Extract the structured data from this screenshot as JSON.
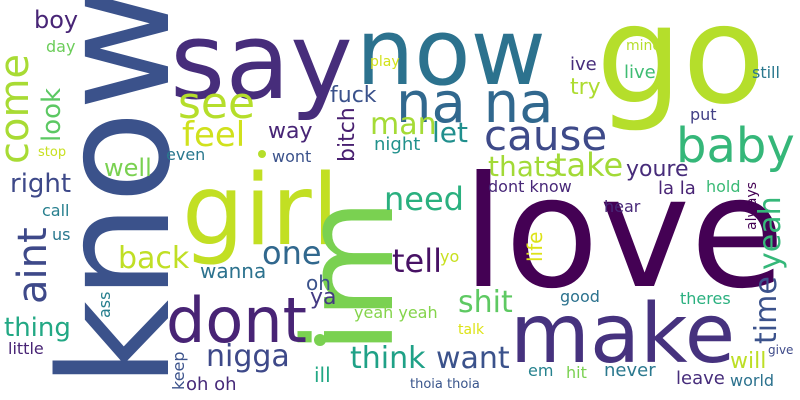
{
  "words": [
    {
      "id": "know",
      "text": "know",
      "color": "#3b528b"
    },
    {
      "id": "say",
      "text": "say",
      "color": "#472d7b"
    },
    {
      "id": "now",
      "text": "now",
      "color": "#2c728e"
    },
    {
      "id": "go",
      "text": "go",
      "color": "#b5de2b"
    },
    {
      "id": "love",
      "text": "love",
      "color": "#440154"
    },
    {
      "id": "girl",
      "text": "girl",
      "color": "#c2df23"
    },
    {
      "id": "im",
      "text": "im",
      "color": "#7ad151"
    },
    {
      "id": "make",
      "text": "make",
      "color": "#46327e"
    },
    {
      "id": "dont",
      "text": "dont",
      "color": "#482475"
    },
    {
      "id": "na-na",
      "text": "na na",
      "color": "#31688e"
    },
    {
      "id": "see",
      "text": "see",
      "color": "#b5de2b"
    },
    {
      "id": "baby",
      "text": "baby",
      "color": "#35b779"
    },
    {
      "id": "cause",
      "text": "cause",
      "color": "#3e4a89"
    },
    {
      "id": "aint",
      "text": "aint",
      "color": "#3e4989"
    },
    {
      "id": "come",
      "text": "come",
      "color": "#a8db34"
    },
    {
      "id": "feel",
      "text": "feel",
      "color": "#d0e11c"
    },
    {
      "id": "nigga",
      "text": "nigga",
      "color": "#3e4989"
    },
    {
      "id": "man",
      "text": "man",
      "color": "#a5db36"
    },
    {
      "id": "let",
      "text": "let",
      "color": "#218f8d"
    },
    {
      "id": "take",
      "text": "take",
      "color": "#a2da37"
    },
    {
      "id": "thats",
      "text": "thats",
      "color": "#a2da37"
    },
    {
      "id": "need",
      "text": "need",
      "color": "#2ab07f"
    },
    {
      "id": "one",
      "text": "one",
      "color": "#31688e"
    },
    {
      "id": "back",
      "text": "back",
      "color": "#c0df25"
    },
    {
      "id": "tell",
      "text": "tell",
      "color": "#471164"
    },
    {
      "id": "shit",
      "text": "shit",
      "color": "#5ec962"
    },
    {
      "id": "think",
      "text": "think",
      "color": "#1fa187"
    },
    {
      "id": "want",
      "text": "want",
      "color": "#3b528b"
    },
    {
      "id": "time",
      "text": "time",
      "color": "#3b528b"
    },
    {
      "id": "yeah",
      "text": "yeah",
      "color": "#35b779"
    },
    {
      "id": "youre",
      "text": "youre",
      "color": "#472c7a"
    },
    {
      "id": "right",
      "text": "right",
      "color": "#3e4989"
    },
    {
      "id": "look",
      "text": "look",
      "color": "#5cc863"
    },
    {
      "id": "boy",
      "text": "boy",
      "color": "#482576"
    },
    {
      "id": "thing",
      "text": "thing",
      "color": "#22a884"
    },
    {
      "id": "well",
      "text": "well",
      "color": "#7ad151"
    },
    {
      "id": "fuck",
      "text": "fuck",
      "color": "#3b528b"
    },
    {
      "id": "way",
      "text": "way",
      "color": "#482576"
    },
    {
      "id": "bitch",
      "text": "bitch",
      "color": "#481f70"
    },
    {
      "id": "night",
      "text": "night",
      "color": "#21918c"
    },
    {
      "id": "even",
      "text": "even",
      "color": "#2a788e"
    },
    {
      "id": "wont",
      "text": "wont",
      "color": "#3b528b"
    },
    {
      "id": "wanna",
      "text": "wanna",
      "color": "#2c728e"
    },
    {
      "id": "oh",
      "text": "oh",
      "color": "#3b528b"
    },
    {
      "id": "ya",
      "text": "ya",
      "color": "#443983"
    },
    {
      "id": "try",
      "text": "try",
      "color": "#addc30"
    },
    {
      "id": "ive",
      "text": "ive",
      "color": "#472d7b"
    },
    {
      "id": "live",
      "text": "live",
      "color": "#3fbc73"
    },
    {
      "id": "mind",
      "text": "mind",
      "color": "#b5de2b"
    },
    {
      "id": "still",
      "text": "still",
      "color": "#2a788e"
    },
    {
      "id": "put",
      "text": "put",
      "color": "#424086"
    },
    {
      "id": "hold",
      "text": "hold",
      "color": "#3aba76"
    },
    {
      "id": "always",
      "text": "always",
      "color": "#440154"
    },
    {
      "id": "la-la",
      "text": "la la",
      "color": "#482475"
    },
    {
      "id": "dont-know",
      "text": "dont know",
      "color": "#482878"
    },
    {
      "id": "hear",
      "text": "hear",
      "color": "#482878"
    },
    {
      "id": "life",
      "text": "life",
      "color": "#dde318"
    },
    {
      "id": "yo",
      "text": "yo",
      "color": "#c8e020"
    },
    {
      "id": "good",
      "text": "good",
      "color": "#2c728e"
    },
    {
      "id": "theres",
      "text": "theres",
      "color": "#2ab07f"
    },
    {
      "id": "yeah-yeah",
      "text": "yeah yeah",
      "color": "#84d44b"
    },
    {
      "id": "talk",
      "text": "talk",
      "color": "#dde318"
    },
    {
      "id": "will",
      "text": "will",
      "color": "#bddf26"
    },
    {
      "id": "give",
      "text": "give",
      "color": "#3e4a89"
    },
    {
      "id": "leave",
      "text": "leave",
      "color": "#472d7b"
    },
    {
      "id": "world",
      "text": "world",
      "color": "#2c728e"
    },
    {
      "id": "never",
      "text": "never",
      "color": "#2a788e"
    },
    {
      "id": "hit",
      "text": "hit",
      "color": "#7ad151"
    },
    {
      "id": "em",
      "text": "em",
      "color": "#26828e"
    },
    {
      "id": "thoia-thoia",
      "text": "thoia thoia",
      "color": "#39558c"
    },
    {
      "id": "ill",
      "text": "ill",
      "color": "#22a884"
    },
    {
      "id": "oh-oh",
      "text": "oh oh",
      "color": "#472a7a"
    },
    {
      "id": "keep",
      "text": "keep",
      "color": "#3b528b"
    },
    {
      "id": "ass",
      "text": "ass",
      "color": "#277f8e"
    },
    {
      "id": "little",
      "text": "little",
      "color": "#482475"
    },
    {
      "id": "us",
      "text": "us",
      "color": "#2a788e"
    },
    {
      "id": "call",
      "text": "call",
      "color": "#277f8e"
    },
    {
      "id": "stop",
      "text": "stop",
      "color": "#c8e020"
    },
    {
      "id": "day",
      "text": "day",
      "color": "#6ccd5a"
    },
    {
      "id": "play",
      "text": "play",
      "color": "#d2e21b"
    }
  ]
}
